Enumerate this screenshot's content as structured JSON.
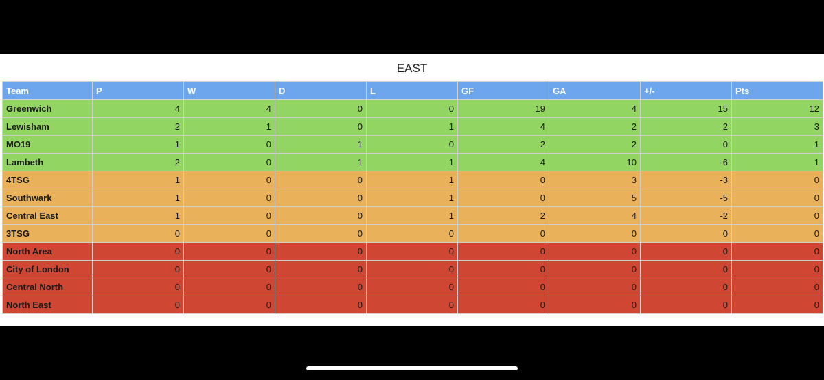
{
  "table": {
    "title": "EAST",
    "columns": [
      "Team",
      "P",
      "W",
      "D",
      "L",
      "GF",
      "GA",
      "+/-",
      "Pts"
    ],
    "rows": [
      {
        "zone": "green",
        "cells": [
          "Greenwich",
          "4",
          "4",
          "0",
          "0",
          "19",
          "4",
          "15",
          "12"
        ]
      },
      {
        "zone": "green",
        "cells": [
          "Lewisham",
          "2",
          "1",
          "0",
          "1",
          "4",
          "2",
          "2",
          "3"
        ]
      },
      {
        "zone": "green",
        "cells": [
          "MO19",
          "1",
          "0",
          "1",
          "0",
          "2",
          "2",
          "0",
          "1"
        ]
      },
      {
        "zone": "green",
        "cells": [
          "Lambeth",
          "2",
          "0",
          "1",
          "1",
          "4",
          "10",
          "-6",
          "1"
        ]
      },
      {
        "zone": "orange",
        "cells": [
          "4TSG",
          "1",
          "0",
          "0",
          "1",
          "0",
          "3",
          "-3",
          "0"
        ]
      },
      {
        "zone": "orange",
        "cells": [
          "Southwark",
          "1",
          "0",
          "0",
          "1",
          "0",
          "5",
          "-5",
          "0"
        ]
      },
      {
        "zone": "orange",
        "cells": [
          "Central East",
          "1",
          "0",
          "0",
          "1",
          "2",
          "4",
          "-2",
          "0"
        ]
      },
      {
        "zone": "orange",
        "cells": [
          "3TSG",
          "0",
          "0",
          "0",
          "0",
          "0",
          "0",
          "0",
          "0"
        ]
      },
      {
        "zone": "red",
        "cells": [
          "North Area",
          "0",
          "0",
          "0",
          "0",
          "0",
          "0",
          "0",
          "0"
        ]
      },
      {
        "zone": "red",
        "cells": [
          "City of London",
          "0",
          "0",
          "0",
          "0",
          "0",
          "0",
          "0",
          "0"
        ]
      },
      {
        "zone": "red",
        "cells": [
          "Central North",
          "0",
          "0",
          "0",
          "0",
          "0",
          "0",
          "0",
          "0"
        ]
      },
      {
        "zone": "red",
        "cells": [
          "North East",
          "0",
          "0",
          "0",
          "0",
          "0",
          "0",
          "0",
          "0"
        ]
      }
    ]
  },
  "colors": {
    "header": "#6ea6ee",
    "green": "#93d563",
    "orange": "#e9b25a",
    "red": "#cf4633",
    "background": "#000000"
  }
}
